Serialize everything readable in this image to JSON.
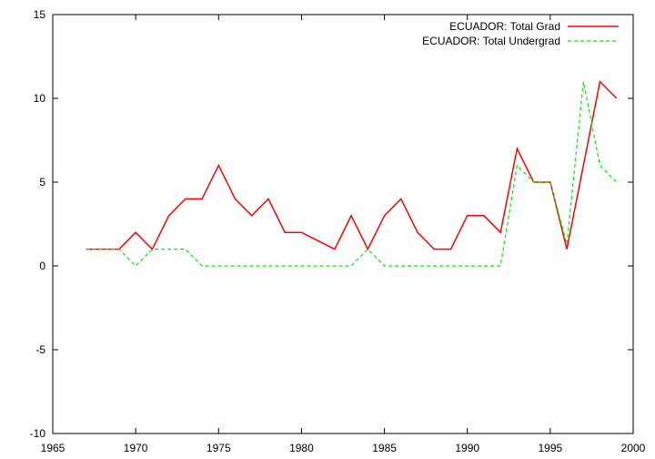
{
  "chart_data": {
    "type": "line",
    "title": "",
    "xlabel": "",
    "ylabel": "",
    "xlim": [
      1965,
      2000
    ],
    "ylim": [
      -10,
      15
    ],
    "xticks": [
      1965,
      1970,
      1975,
      1980,
      1985,
      1990,
      1995,
      2000
    ],
    "yticks": [
      -10,
      -5,
      0,
      5,
      10,
      15
    ],
    "grid": false,
    "legend_position": "top-right",
    "x": [
      1967,
      1968,
      1969,
      1970,
      1971,
      1972,
      1973,
      1974,
      1975,
      1976,
      1977,
      1978,
      1979,
      1980,
      1981,
      1982,
      1983,
      1984,
      1985,
      1986,
      1987,
      1988,
      1989,
      1990,
      1991,
      1992,
      1993,
      1994,
      1995,
      1996,
      1997,
      1998,
      1999
    ],
    "series": [
      {
        "name": "ECUADOR: Total Grad",
        "color": "#ff0000",
        "dash": "solid",
        "values": [
          1,
          1,
          1,
          2,
          1,
          3,
          4,
          4,
          6,
          4,
          3,
          4,
          2,
          2,
          1.5,
          1,
          3,
          1,
          3,
          4,
          2,
          1,
          1,
          3,
          3,
          2,
          7,
          5,
          5,
          1,
          6,
          11,
          10
        ]
      },
      {
        "name": "ECUADOR: Total Undergrad",
        "color": "#00ee00",
        "dash": "dashed",
        "values": [
          1,
          1,
          1,
          0,
          1,
          1,
          1,
          0,
          0,
          0,
          0,
          0,
          0,
          0,
          0,
          0,
          0,
          1,
          0,
          0,
          0,
          0,
          0,
          0,
          0,
          0,
          6,
          5,
          5,
          1.3,
          11,
          6,
          5
        ]
      }
    ]
  }
}
